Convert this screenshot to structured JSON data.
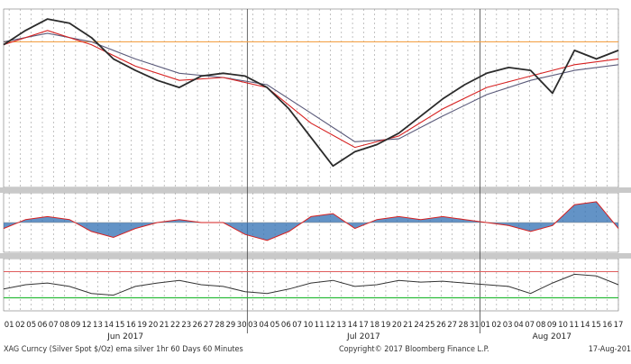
{
  "chart_data": {
    "type": "line",
    "price_range": [
      16.0,
      17.25
    ],
    "oscillator_range": [
      -1,
      1
    ],
    "rsi_range": [
      20,
      80
    ],
    "reference_levels": {
      "orange": 17.02,
      "rsi_upper": 65,
      "rsi_lower": 35
    },
    "x_ticks": {
      "Jun 2017": [
        "01",
        "02",
        "05",
        "06",
        "07",
        "08",
        "09",
        "12",
        "13",
        "14",
        "15",
        "16",
        "19",
        "20",
        "21",
        "22",
        "23",
        "26",
        "27",
        "28",
        "29",
        "30"
      ],
      "Jul 2017": [
        "03",
        "04",
        "05",
        "06",
        "07",
        "10",
        "11",
        "12",
        "13",
        "14",
        "17",
        "18",
        "19",
        "20",
        "21",
        "24",
        "25",
        "26",
        "27",
        "28",
        "31"
      ],
      "Aug 2017": [
        "01",
        "02",
        "03",
        "04",
        "07",
        "08",
        "09",
        "10",
        "11",
        "14",
        "15",
        "16",
        "17"
      ]
    },
    "month_labels": [
      "Jun 2017",
      "Jul 2017",
      "Aug 2017"
    ],
    "price_series": {
      "x": [
        0,
        2,
        4,
        6,
        8,
        10,
        12,
        14,
        16,
        18,
        20,
        22,
        24,
        26,
        28,
        30,
        32,
        34,
        36,
        38,
        40,
        42,
        44,
        46,
        48,
        50,
        52,
        54,
        56
      ],
      "y": [
        17.0,
        17.1,
        17.18,
        17.15,
        17.05,
        16.9,
        16.82,
        16.75,
        16.7,
        16.78,
        16.8,
        16.78,
        16.7,
        16.55,
        16.35,
        16.15,
        16.25,
        16.3,
        16.38,
        16.5,
        16.62,
        16.72,
        16.8,
        16.84,
        16.82,
        16.66,
        16.96,
        16.9,
        16.96
      ]
    },
    "ema_red": {
      "x": [
        0,
        4,
        8,
        12,
        16,
        20,
        24,
        28,
        32,
        36,
        40,
        44,
        48,
        52,
        56
      ],
      "y": [
        17.0,
        17.1,
        17.0,
        16.85,
        16.75,
        16.77,
        16.7,
        16.45,
        16.28,
        16.36,
        16.55,
        16.7,
        16.78,
        16.86,
        16.9
      ]
    },
    "ema_gray": {
      "x": [
        0,
        4,
        8,
        12,
        16,
        20,
        24,
        28,
        32,
        36,
        40,
        44,
        48,
        52,
        56
      ],
      "y": [
        17.02,
        17.08,
        17.02,
        16.9,
        16.8,
        16.77,
        16.72,
        16.52,
        16.32,
        16.34,
        16.5,
        16.65,
        16.75,
        16.82,
        16.86
      ]
    },
    "oscillator_series": {
      "x": [
        0,
        2,
        4,
        6,
        8,
        10,
        12,
        14,
        16,
        18,
        20,
        22,
        24,
        26,
        28,
        30,
        32,
        34,
        36,
        38,
        40,
        42,
        44,
        46,
        48,
        50,
        52,
        54,
        56
      ],
      "y": [
        -0.2,
        0.1,
        0.2,
        0.1,
        -0.3,
        -0.5,
        -0.2,
        0.0,
        0.1,
        0.0,
        0.0,
        -0.4,
        -0.6,
        -0.3,
        0.2,
        0.3,
        -0.2,
        0.1,
        0.2,
        0.1,
        0.2,
        0.1,
        0.0,
        -0.1,
        -0.3,
        -0.1,
        0.6,
        0.7,
        -0.2
      ]
    },
    "rsi_series": {
      "x": [
        0,
        2,
        4,
        6,
        8,
        10,
        12,
        14,
        16,
        18,
        20,
        22,
        24,
        26,
        28,
        30,
        32,
        34,
        36,
        38,
        40,
        42,
        44,
        46,
        48,
        50,
        52,
        54,
        56
      ],
      "y": [
        45,
        50,
        52,
        48,
        40,
        38,
        48,
        52,
        55,
        50,
        48,
        42,
        40,
        45,
        52,
        55,
        48,
        50,
        55,
        53,
        54,
        52,
        50,
        48,
        40,
        52,
        62,
        60,
        50
      ]
    },
    "footer": {
      "left": "XAG Curncy (Silver Spot  $/Oz) ema silver 1hr 60 Days 60 Minutes",
      "center": "Copyright© 2017 Bloomberg Finance L.P.",
      "right": "17-Aug-201"
    },
    "colors": {
      "price": "#2b2b2b",
      "ema_red": "#d62020",
      "ema_gray": "#5a5a7a",
      "orange_ref": "#f3a34a",
      "osc_blue": "#2f6fb3",
      "osc_red_fill": "#e8777b",
      "rsi_green": "#2bbb3a",
      "rsi_red": "#e05c5c",
      "grid": "#9a9a9a",
      "separator": "#777777"
    }
  }
}
